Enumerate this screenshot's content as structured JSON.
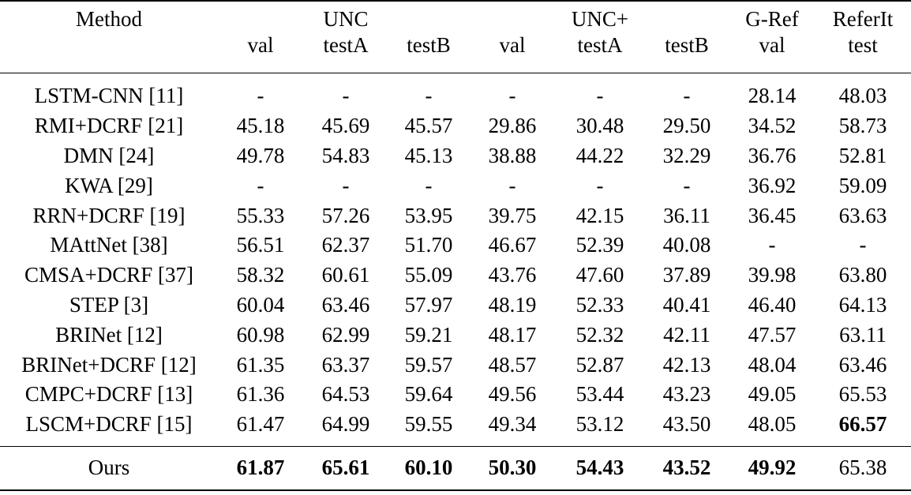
{
  "header": {
    "method": "Method",
    "groups": {
      "unc": "UNC",
      "uncplus": "UNC+",
      "gref": "G-Ref",
      "referit": "ReferIt"
    },
    "subcols": [
      "val",
      "testA",
      "testB",
      "val",
      "testA",
      "testB",
      "val",
      "test"
    ]
  },
  "rows": [
    {
      "method": "LSTM-CNN [11]",
      "values": [
        "-",
        "-",
        "-",
        "-",
        "-",
        "-",
        "28.14",
        "48.03"
      ]
    },
    {
      "method": "RMI+DCRF [21]",
      "values": [
        "45.18",
        "45.69",
        "45.57",
        "29.86",
        "30.48",
        "29.50",
        "34.52",
        "58.73"
      ]
    },
    {
      "method": "DMN [24]",
      "values": [
        "49.78",
        "54.83",
        "45.13",
        "38.88",
        "44.22",
        "32.29",
        "36.76",
        "52.81"
      ]
    },
    {
      "method": "KWA [29]",
      "values": [
        "-",
        "-",
        "-",
        "-",
        "-",
        "-",
        "36.92",
        "59.09"
      ]
    },
    {
      "method": "RRN+DCRF [19]",
      "values": [
        "55.33",
        "57.26",
        "53.95",
        "39.75",
        "42.15",
        "36.11",
        "36.45",
        "63.63"
      ]
    },
    {
      "method": "MAttNet [38]",
      "values": [
        "56.51",
        "62.37",
        "51.70",
        "46.67",
        "52.39",
        "40.08",
        "-",
        "-"
      ]
    },
    {
      "method": "CMSA+DCRF [37]",
      "values": [
        "58.32",
        "60.61",
        "55.09",
        "43.76",
        "47.60",
        "37.89",
        "39.98",
        "63.80"
      ]
    },
    {
      "method": "STEP [3]",
      "values": [
        "60.04",
        "63.46",
        "57.97",
        "48.19",
        "52.33",
        "40.41",
        "46.40",
        "64.13"
      ]
    },
    {
      "method": "BRINet [12]",
      "values": [
        "60.98",
        "62.99",
        "59.21",
        "48.17",
        "52.32",
        "42.11",
        "47.57",
        "63.11"
      ]
    },
    {
      "method": "BRINet+DCRF [12]",
      "values": [
        "61.35",
        "63.37",
        "59.57",
        "48.57",
        "52.87",
        "42.13",
        "48.04",
        "63.46"
      ]
    },
    {
      "method": "CMPC+DCRF [13]",
      "values": [
        "61.36",
        "64.53",
        "59.64",
        "49.56",
        "53.44",
        "43.23",
        "49.05",
        "65.53"
      ]
    },
    {
      "method": "LSCM+DCRF [15]",
      "values": [
        "61.47",
        "64.99",
        "59.55",
        "49.34",
        "53.12",
        "43.50",
        "48.05",
        "66.57"
      ]
    }
  ],
  "ours": {
    "method": "Ours",
    "values": [
      "61.87",
      "65.61",
      "60.10",
      "50.30",
      "54.43",
      "43.52",
      "49.92",
      "65.38"
    ]
  }
}
